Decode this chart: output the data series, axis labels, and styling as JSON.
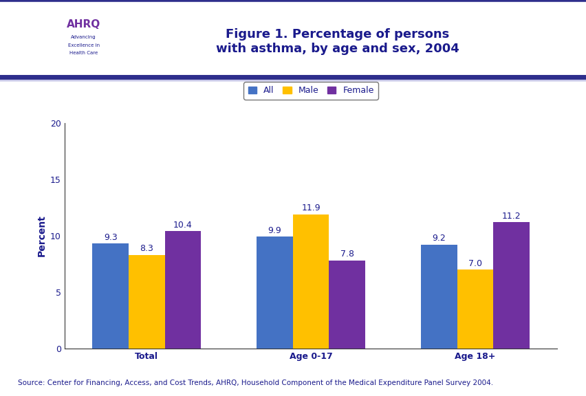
{
  "title": "Figure 1. Percentage of persons\nwith asthma, by age and sex, 2004",
  "title_color": "#1a1a8c",
  "title_fontsize": 13,
  "ylabel": "Percent",
  "ylabel_color": "#1a1a8c",
  "ylabel_fontsize": 10,
  "categories": [
    "Total",
    "Age 0-17",
    "Age 18+"
  ],
  "series": {
    "All": [
      9.3,
      9.9,
      9.2
    ],
    "Male": [
      8.3,
      11.9,
      7.0
    ],
    "Female": [
      10.4,
      7.8,
      11.2
    ]
  },
  "bar_colors": {
    "All": "#4472c4",
    "Male": "#ffc000",
    "Female": "#7030a0"
  },
  "legend_labels": [
    "All",
    "Male",
    "Female"
  ],
  "ylim": [
    0,
    20
  ],
  "yticks": [
    0,
    5,
    10,
    15,
    20
  ],
  "bar_width": 0.22,
  "label_fontsize": 9,
  "label_color": "#1a1a8c",
  "tick_color": "#1a1a8c",
  "tick_fontsize": 9,
  "source_text": "Source: Center for Financing, Access, and Cost Trends, AHRQ, Household Component of the Medical Expenditure Panel Survey 2004.",
  "source_color": "#1a1a8c",
  "source_fontsize": 7.5,
  "background_color": "#ffffff",
  "header_line_color": "#2e2e8c",
  "header_line_color2": "#6666cc",
  "axis_color": "#333333",
  "legend_fontsize": 9,
  "logo_box_color": "#4da6c8",
  "logo_box_color2": "#2255aa"
}
